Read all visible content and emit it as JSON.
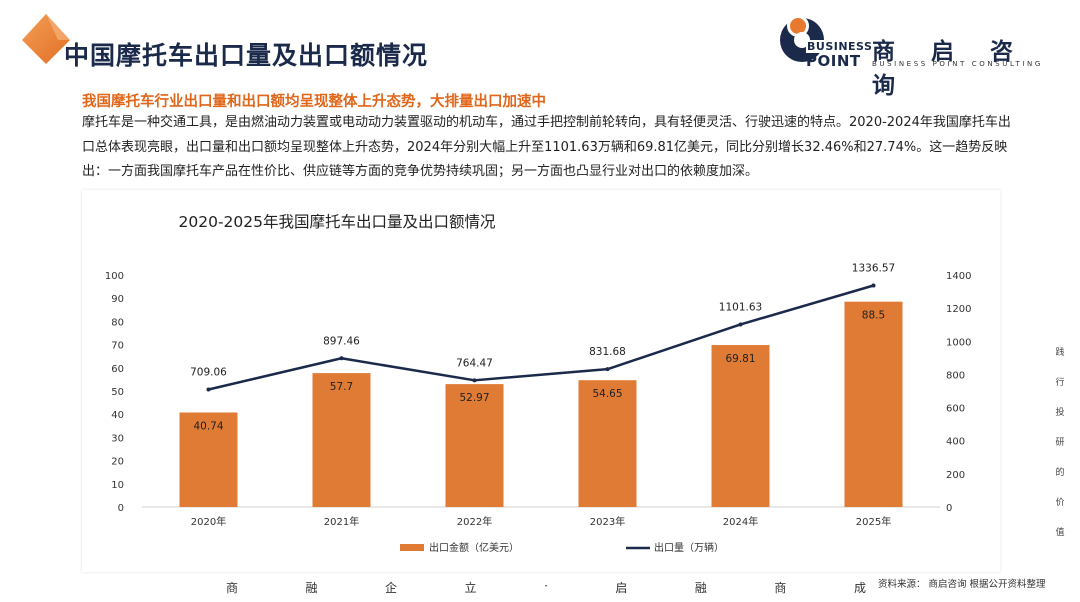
{
  "header": {
    "title": "中国摩托车出口量及出口额情况",
    "logo": {
      "mark_line1": "BUSINESS",
      "mark_line2": "POINT",
      "name_cn": "商 启 咨 询",
      "name_en": "BUSINESS POINT CONSULTING"
    }
  },
  "content": {
    "subtitle": "我国摩托车行业出口量和出口额均呈现整体上升态势，大排量出口加速中",
    "paragraph": "摩托车是一种交通工具，是由燃油动力装置或电动动力装置驱动的机动车，通过手把控制前轮转向，具有轻便灵活、行驶迅速的特点。2020-2024年我国摩托车出口总体表现亮眼，出口量和出口额均呈现整体上升态势，2024年分别大幅上升至1101.63万辆和69.81亿美元，同比分别增长32.46%和27.74%。这一趋势反映出：一方面我国摩托车产品在性价比、供应链等方面的竞争优势持续巩固；另一方面也凸显行业对出口的依赖度加深。"
  },
  "side_text": [
    "践",
    "行",
    "投",
    "研",
    "的",
    "价",
    "值"
  ],
  "footer": {
    "slogan": [
      "商",
      "融",
      "企",
      "立",
      "·",
      "启",
      "融",
      "商",
      "成"
    ],
    "source": "资料来源：  商启咨询 根据公开资料整理"
  },
  "colors": {
    "bar": "#e07b35",
    "line": "#1b2a4a",
    "title": "#1b2a4a",
    "accent": "#e0661a"
  },
  "chart_data": {
    "type": "bar",
    "title": "2020-2025年我国摩托车出口量及出口额情况",
    "categories": [
      "2020年",
      "2021年",
      "2022年",
      "2023年",
      "2024年",
      "2025年"
    ],
    "series": [
      {
        "name": "出口金额（亿美元）",
        "type": "bar",
        "axis": "left",
        "values": [
          40.74,
          57.7,
          52.97,
          54.65,
          69.81,
          88.5
        ],
        "labels": [
          "40.74",
          "57.7",
          "52.97",
          "54.65",
          "69.81",
          "88.5"
        ]
      },
      {
        "name": "出口量（万辆）",
        "type": "line",
        "axis": "right",
        "values": [
          709.06,
          897.46,
          764.47,
          831.68,
          1101.63,
          1336.57
        ],
        "labels": [
          "709.06",
          "897.46",
          "764.47",
          "831.68",
          "1101.63",
          "1336.57"
        ]
      }
    ],
    "y_left": {
      "min": 0,
      "max": 100,
      "ticks": [
        "0",
        "10",
        "20",
        "30",
        "40",
        "50",
        "60",
        "70",
        "80",
        "90",
        "100"
      ]
    },
    "y_right": {
      "min": 0,
      "max": 1400,
      "ticks": [
        "0",
        "200",
        "400",
        "600",
        "800",
        "1000",
        "1200",
        "1400"
      ]
    },
    "grid": false,
    "legend": "bottom"
  }
}
